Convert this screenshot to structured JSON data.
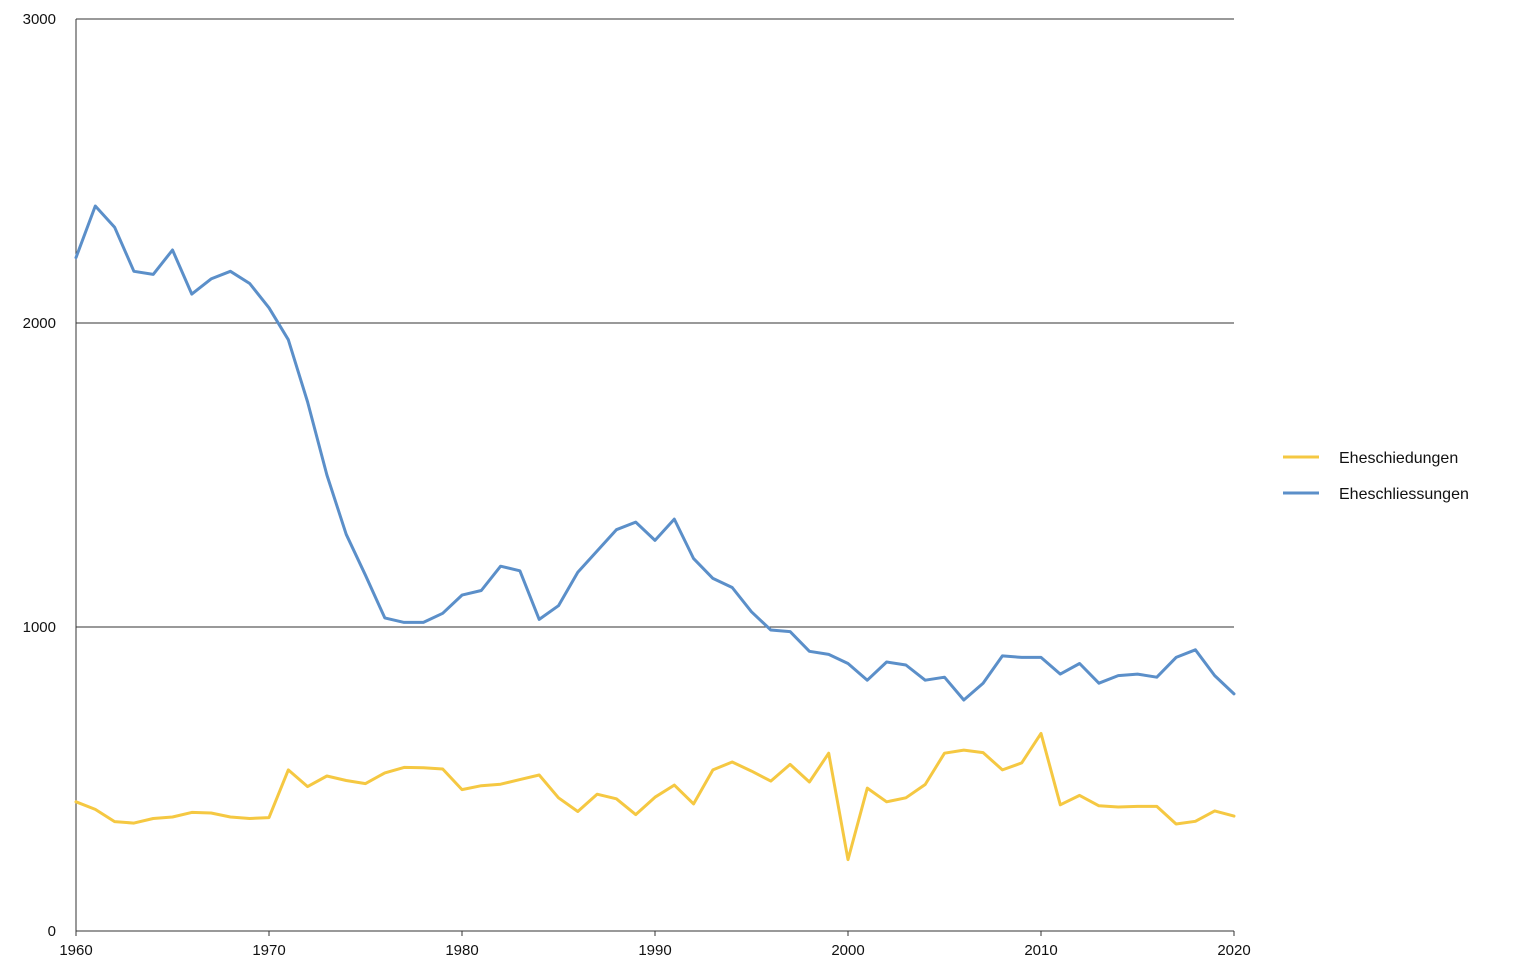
{
  "chart_data": {
    "type": "line",
    "x": [
      1960,
      1961,
      1962,
      1963,
      1964,
      1965,
      1966,
      1967,
      1968,
      1969,
      1970,
      1971,
      1972,
      1973,
      1974,
      1975,
      1976,
      1977,
      1978,
      1979,
      1980,
      1981,
      1982,
      1983,
      1984,
      1985,
      1986,
      1987,
      1988,
      1989,
      1990,
      1991,
      1992,
      1993,
      1994,
      1995,
      1996,
      1997,
      1998,
      1999,
      2000,
      2001,
      2002,
      2003,
      2004,
      2005,
      2006,
      2007,
      2008,
      2009,
      2010,
      2011,
      2012,
      2013,
      2014,
      2015,
      2016,
      2017,
      2018,
      2019,
      2020
    ],
    "xlim": [
      1960,
      2020
    ],
    "ylim": [
      0,
      3000
    ],
    "xticks": [
      "1960",
      "1970",
      "1980",
      "1990",
      "2000",
      "2010",
      "2020"
    ],
    "yticks": [
      "0",
      "1000",
      "2000",
      "3000"
    ],
    "grid": "horizontal",
    "legend_position": "right",
    "series": [
      {
        "name": "Eheschliessungen",
        "color": "#5b8fc9",
        "values": [
          2215,
          2385,
          2315,
          2170,
          2160,
          2240,
          2095,
          2145,
          2170,
          2130,
          2050,
          1945,
          1740,
          1500,
          1305,
          1170,
          1030,
          1015,
          1015,
          1045,
          1105,
          1120,
          1200,
          1185,
          1025,
          1070,
          1180,
          1250,
          1320,
          1345,
          1285,
          1355,
          1225,
          1160,
          1130,
          1050,
          990,
          985,
          920,
          910,
          880,
          825,
          885,
          875,
          825,
          835,
          760,
          815,
          905,
          900,
          900,
          845,
          880,
          815,
          840,
          845,
          835,
          900,
          925,
          840,
          780
        ]
      },
      {
        "name": "Eheschiedungen",
        "color": "#f5c842",
        "values": [
          425,
          400,
          360,
          355,
          370,
          375,
          390,
          388,
          375,
          370,
          373,
          530,
          475,
          510,
          495,
          485,
          520,
          538,
          537,
          533,
          465,
          478,
          483,
          498,
          513,
          438,
          393,
          450,
          435,
          383,
          440,
          480,
          418,
          530,
          556,
          526,
          493,
          548,
          490,
          585,
          235,
          470,
          425,
          438,
          482,
          585,
          595,
          587,
          530,
          553,
          650,
          415,
          446,
          412,
          408,
          410,
          410,
          352,
          361,
          395,
          378
        ]
      }
    ],
    "legend": [
      {
        "label": "Eheschiedungen",
        "color": "#f5c842"
      },
      {
        "label": "Eheschliessungen",
        "color": "#5b8fc9"
      }
    ]
  }
}
